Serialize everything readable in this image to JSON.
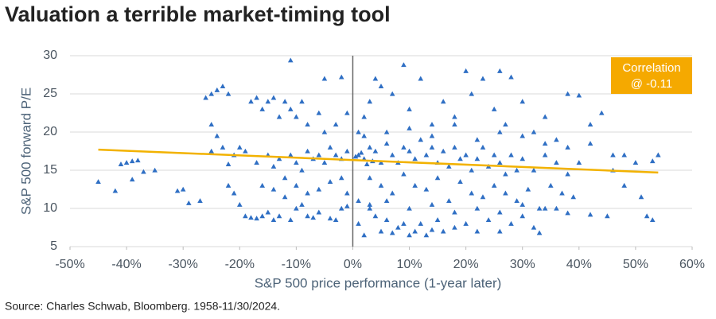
{
  "chart_data": {
    "type": "scatter",
    "title": "Valuation a terrible market-timing tool",
    "x_label": "S&P 500 price performance (1-year later)",
    "y_label": "S&P 500 forward P/E",
    "source": "Source: Charles Schwab, Bloomberg. 1958-11/30/2024.",
    "xlim": [
      -50,
      60
    ],
    "ylim": [
      5,
      30
    ],
    "xticks": [
      {
        "value": -50,
        "label": "-50%"
      },
      {
        "value": -40,
        "label": "-40%"
      },
      {
        "value": -30,
        "label": "-30%"
      },
      {
        "value": -20,
        "label": "-20%"
      },
      {
        "value": -10,
        "label": "-10%"
      },
      {
        "value": 0,
        "label": "0%"
      },
      {
        "value": 10,
        "label": "10%"
      },
      {
        "value": 20,
        "label": "20%"
      },
      {
        "value": 30,
        "label": "30%"
      },
      {
        "value": 40,
        "label": "40%"
      },
      {
        "value": 50,
        "label": "50%"
      },
      {
        "value": 60,
        "label": "60%"
      }
    ],
    "yticks": [
      5,
      10,
      15,
      20,
      25,
      30
    ],
    "grid": true,
    "vline": 0,
    "series": [
      {
        "color": "#2f6fc4",
        "marker": "triangle",
        "x": [
          -45,
          -42,
          -41,
          -40,
          -39,
          -38,
          -39,
          -37,
          -35,
          -31,
          -30,
          -29,
          -27,
          -26,
          -25,
          -24,
          -23,
          -22,
          -25,
          -24,
          -23,
          -25,
          -22,
          -21,
          -20,
          -19,
          -22,
          -21,
          -20,
          -19,
          -18,
          -17,
          -16,
          -15,
          -14,
          -13,
          -11,
          -10,
          -9,
          -8,
          -7,
          -6,
          -4,
          -3,
          -2,
          -1,
          -18,
          -17,
          -16,
          -15,
          -14,
          -13,
          -12,
          -11,
          -10,
          -9,
          -8,
          -6,
          -5,
          -3,
          -1,
          -2,
          -11,
          -5,
          -17,
          -15,
          -14,
          -13,
          -12,
          -11,
          -10,
          -9,
          -8,
          -7,
          -6,
          -5,
          -4,
          -3,
          -2,
          -1,
          -16,
          -14,
          -12,
          -10,
          -8,
          -6,
          -4,
          -2,
          -1,
          1,
          2,
          3,
          4,
          5,
          6,
          7,
          8,
          9,
          10,
          11,
          12,
          13,
          14,
          15,
          16,
          18,
          20,
          22,
          24,
          26,
          28,
          30,
          32,
          33,
          1,
          2,
          3,
          4,
          5,
          7,
          9,
          10,
          12,
          14,
          16,
          18,
          20,
          21,
          23,
          25,
          26,
          28,
          27,
          30,
          32,
          34,
          36,
          38,
          40,
          42,
          44,
          46,
          48,
          50,
          51,
          52,
          53,
          54,
          53,
          45,
          42,
          38,
          36,
          46,
          1,
          2,
          3,
          4,
          5,
          6,
          7,
          8,
          9,
          10,
          11,
          12,
          13,
          14,
          15,
          16,
          17,
          18,
          19,
          20,
          21,
          22,
          23,
          24,
          25,
          26,
          27,
          28,
          29,
          30,
          32,
          34,
          36,
          38,
          40,
          48,
          0.5,
          1.5,
          2.5,
          3.5,
          3,
          5,
          7,
          9,
          11,
          13,
          15,
          17,
          19,
          21,
          23,
          25,
          27,
          29,
          31,
          33,
          35,
          37,
          39,
          1,
          3,
          6,
          10,
          14,
          18,
          22,
          26,
          30,
          34,
          42,
          2,
          6,
          10,
          14,
          18,
          22,
          26,
          30,
          34,
          38
        ],
        "values": [
          13.5,
          12.3,
          15.8,
          16,
          16.2,
          16.3,
          13.8,
          14.8,
          15,
          12.3,
          12.5,
          10.7,
          11,
          24.5,
          25,
          25.5,
          26,
          25,
          21,
          19.5,
          18,
          17.5,
          15.8,
          17,
          18,
          17.5,
          13,
          12,
          10.5,
          9,
          8.8,
          8.7,
          9,
          9.5,
          8.5,
          9,
          8.5,
          10,
          10.5,
          9,
          8.8,
          9.5,
          8.7,
          8.5,
          10,
          10.3,
          24,
          24.5,
          23,
          24,
          24.5,
          22,
          24,
          23,
          22,
          24,
          21,
          22.5,
          20,
          21,
          22.5,
          27.2,
          29.4,
          27,
          16,
          17,
          15.5,
          16.5,
          14,
          17,
          16,
          15,
          17.5,
          16.5,
          17,
          16,
          18,
          17,
          16.5,
          17.5,
          13,
          12.5,
          11.5,
          13,
          12,
          12.5,
          13.5,
          14,
          12,
          8,
          6.5,
          10,
          9,
          7,
          8.5,
          6.8,
          7.5,
          8,
          6.5,
          7,
          8,
          6.5,
          7.2,
          8.5,
          7,
          7.5,
          8,
          7,
          8.5,
          7,
          8,
          9,
          7.5,
          6.8,
          20,
          22,
          24,
          27,
          26,
          25,
          28.8,
          23,
          27,
          21,
          24,
          22,
          28,
          25,
          27,
          23,
          28,
          27.2,
          21,
          24,
          20,
          22,
          19,
          25,
          24.8,
          21,
          22.5,
          17,
          13,
          16,
          11.5,
          9,
          8.5,
          17,
          16.2,
          9,
          9.2,
          9.4,
          10,
          15,
          17,
          16.5,
          18,
          17.5,
          16,
          18.5,
          17,
          16,
          18,
          17.5,
          16.5,
          19,
          17,
          18,
          16,
          17.5,
          15.5,
          18,
          16.5,
          17,
          15,
          16.5,
          18,
          15.5,
          17,
          16,
          14.5,
          17,
          15,
          16.5,
          15,
          17,
          16,
          14.5,
          16,
          17,
          16.8,
          17.3,
          15.8,
          16.2,
          14,
          13,
          12,
          14.5,
          13,
          12.5,
          14,
          11,
          13.5,
          12,
          11.5,
          13,
          12,
          11,
          12.5,
          10,
          13,
          12,
          11.5,
          11,
          10.5,
          11,
          10,
          10.5,
          9.5,
          10,
          9.5,
          10.5,
          10,
          18.5,
          19.5,
          20,
          20.5,
          19.5,
          21,
          19,
          20,
          19.5,
          18.5,
          18
        ]
      }
    ],
    "trend_line": {
      "x": [
        -45,
        54
      ],
      "values": [
        17.7,
        14.7
      ],
      "color": "#f2b200"
    },
    "annotation": {
      "lines": [
        "Correlation",
        "@ -0.11"
      ],
      "color": "#f5a900"
    }
  }
}
